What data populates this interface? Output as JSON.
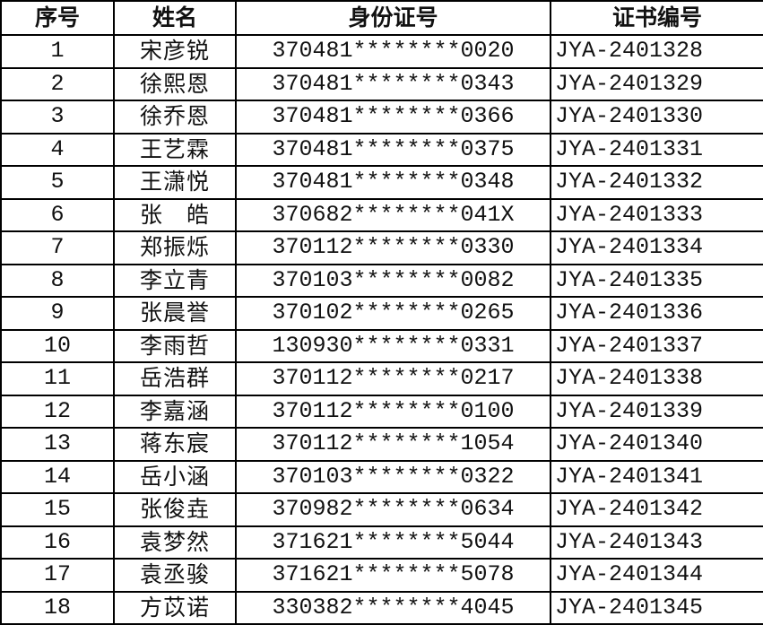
{
  "table": {
    "headers": [
      "序号",
      "姓名",
      "身份证号",
      "证书编号"
    ],
    "rows": [
      {
        "no": "1",
        "name": "宋彦锐",
        "id": "370481********0020",
        "cert": "JYA-2401328"
      },
      {
        "no": "2",
        "name": "徐熙恩",
        "id": "370481********0343",
        "cert": "JYA-2401329"
      },
      {
        "no": "3",
        "name": "徐乔恩",
        "id": "370481********0366",
        "cert": "JYA-2401330"
      },
      {
        "no": "4",
        "name": "王艺霖",
        "id": "370481********0375",
        "cert": "JYA-2401331"
      },
      {
        "no": "5",
        "name": "王潇悦",
        "id": "370481********0348",
        "cert": "JYA-2401332"
      },
      {
        "no": "6",
        "name": "张　皓",
        "id": "370682********041X",
        "cert": "JYA-2401333"
      },
      {
        "no": "7",
        "name": "郑振烁",
        "id": "370112********0330",
        "cert": "JYA-2401334"
      },
      {
        "no": "8",
        "name": "李立青",
        "id": "370103********0082",
        "cert": "JYA-2401335"
      },
      {
        "no": "9",
        "name": "张晨誉",
        "id": "370102********0265",
        "cert": "JYA-2401336"
      },
      {
        "no": "10",
        "name": "李雨哲",
        "id": "130930********0331",
        "cert": "JYA-2401337"
      },
      {
        "no": "11",
        "name": "岳浩群",
        "id": "370112********0217",
        "cert": "JYA-2401338"
      },
      {
        "no": "12",
        "name": "李嘉涵",
        "id": "370112********0100",
        "cert": "JYA-2401339"
      },
      {
        "no": "13",
        "name": "蒋东宸",
        "id": "370112********1054",
        "cert": "JYA-2401340"
      },
      {
        "no": "14",
        "name": "岳小涵",
        "id": "370103********0322",
        "cert": "JYA-2401341"
      },
      {
        "no": "15",
        "name": "张俊垚",
        "id": "370982********0634",
        "cert": "JYA-2401342"
      },
      {
        "no": "16",
        "name": "袁梦然",
        "id": "371621********5044",
        "cert": "JYA-2401343"
      },
      {
        "no": "17",
        "name": "袁丞骏",
        "id": "371621********5078",
        "cert": "JYA-2401344"
      },
      {
        "no": "18",
        "name": "方苡诺",
        "id": "330382********4045",
        "cert": "JYA-2401345"
      }
    ]
  }
}
